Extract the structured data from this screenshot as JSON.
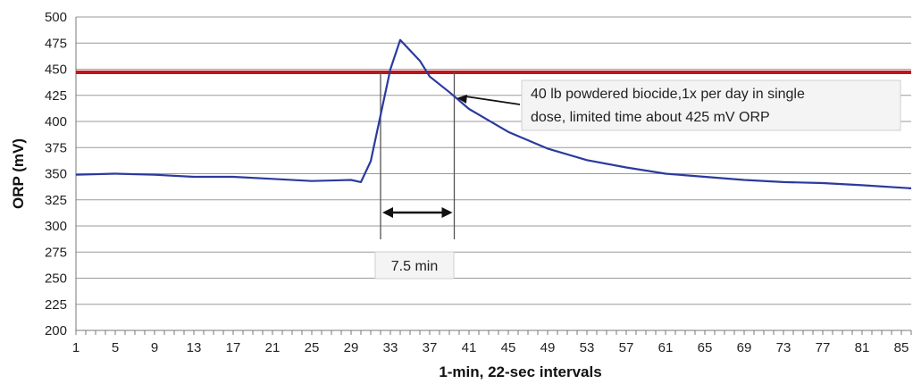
{
  "chart_data": {
    "type": "line",
    "xlabel": "1-min, 22-sec intervals",
    "ylabel": "ORP (mV)",
    "ylim": [
      200,
      500
    ],
    "xlim": [
      1,
      86
    ],
    "grid": true,
    "y_ticks": [
      "200",
      "225",
      "250",
      "275",
      "300",
      "325",
      "350",
      "375",
      "400",
      "425",
      "450",
      "475",
      "500"
    ],
    "x_ticks": [
      "1",
      "5",
      "9",
      "13",
      "17",
      "21",
      "25",
      "29",
      "33",
      "37",
      "41",
      "45",
      "49",
      "53",
      "57",
      "61",
      "65",
      "69",
      "73",
      "77",
      "81",
      "85"
    ],
    "series": [
      {
        "color": "#2b3a9e",
        "x": [
          1,
          5,
          9,
          13,
          17,
          21,
          25,
          29,
          30,
          31,
          33,
          34,
          36,
          37,
          39,
          41,
          45,
          49,
          53,
          57,
          61,
          65,
          69,
          73,
          77,
          81,
          86
        ],
        "y": [
          349,
          350,
          349,
          347,
          347,
          345,
          343,
          344,
          342,
          362,
          450,
          478,
          458,
          443,
          428,
          412,
          390,
          374,
          363,
          356,
          350,
          347,
          344,
          342,
          341,
          339,
          336
        ]
      }
    ],
    "threshold": {
      "value": 447,
      "color": "#c0141b"
    },
    "annotations": {
      "note_line1": "40 lb powdered biocide,1x per day in single",
      "note_line2": "dose, limited time about 425 mV ORP",
      "duration_label": "7.5 min",
      "marker_start_x": 32,
      "marker_end_x": 39.5,
      "arrow_target_x": 39.5,
      "arrow_target_y": 425
    }
  }
}
